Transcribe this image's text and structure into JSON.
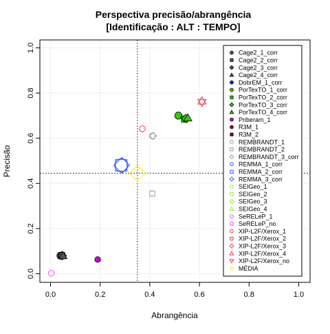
{
  "chart_data": {
    "type": "scatter",
    "title": [
      "Perspectiva precisão/abrangência",
      "[Identificação : ALT : TEMPO]"
    ],
    "xlabel": "Abrangência",
    "ylabel": "Precisão",
    "xlim": [
      0,
      1
    ],
    "ylim": [
      0,
      1
    ],
    "xticks": [
      "0.0",
      "0.2",
      "0.4",
      "0.6",
      "0.8",
      "1.0"
    ],
    "yticks": [
      "0.0",
      "0.2",
      "0.4",
      "0.6",
      "0.8",
      "1.0"
    ],
    "grid": true,
    "reference_lines": {
      "x": 0.35,
      "y": 0.445
    },
    "legend_position": "top-right",
    "series": [
      {
        "name": "Cage2_1_corr",
        "shape": "circle",
        "color": "#555555",
        "fill": true,
        "size": "large",
        "points": [
          {
            "x": 0.04,
            "y": 0.08
          }
        ]
      },
      {
        "name": "Cage2_2_corr",
        "shape": "square",
        "color": "#555555",
        "fill": true,
        "size": "large",
        "points": [
          {
            "x": 0.045,
            "y": 0.08
          }
        ]
      },
      {
        "name": "Cage2_3_corr",
        "shape": "diamond",
        "color": "#555555",
        "fill": true,
        "size": "large",
        "points": [
          {
            "x": 0.047,
            "y": 0.08
          }
        ]
      },
      {
        "name": "Cage2_4_corr",
        "shape": "triangle",
        "color": "#555555",
        "fill": true,
        "size": "large",
        "points": [
          {
            "x": 0.05,
            "y": 0.08
          }
        ]
      },
      {
        "name": "DobrEM_1_corr",
        "shape": "circle",
        "color": "#0000cc",
        "fill": true,
        "size": "normal",
        "points": []
      },
      {
        "name": "PorTexTO_1_corr",
        "shape": "circle",
        "color": "#33cc00",
        "fill": true,
        "size": "large",
        "points": [
          {
            "x": 0.515,
            "y": 0.7
          }
        ]
      },
      {
        "name": "PorTexTO_2_corr",
        "shape": "square",
        "color": "#33cc00",
        "fill": true,
        "size": "large",
        "points": [
          {
            "x": 0.54,
            "y": 0.685
          }
        ]
      },
      {
        "name": "PorTexTO_3_corr",
        "shape": "diamond",
        "color": "#33cc00",
        "fill": true,
        "size": "large",
        "points": [
          {
            "x": 0.545,
            "y": 0.687
          }
        ]
      },
      {
        "name": "PorTexTO_4_corr",
        "shape": "triangle",
        "color": "#33cc00",
        "fill": true,
        "size": "large",
        "points": [
          {
            "x": 0.553,
            "y": 0.69
          }
        ]
      },
      {
        "name": "Priberam_1",
        "shape": "circle",
        "color": "#cc00cc",
        "fill": true,
        "size": "normal",
        "points": [
          {
            "x": 0.19,
            "y": 0.063
          }
        ]
      },
      {
        "name": "R3M_1",
        "shape": "circle",
        "color": "#990033",
        "fill": true,
        "size": "normal",
        "points": []
      },
      {
        "name": "R3M_2",
        "shape": "square",
        "color": "#990033",
        "fill": true,
        "size": "normal",
        "points": []
      },
      {
        "name": "REMBRANDT_1",
        "shape": "circle",
        "color": "#999999",
        "fill": false,
        "size": "normal",
        "points": [
          {
            "x": 0.41,
            "y": 0.61
          }
        ]
      },
      {
        "name": "REMBRANDT_2",
        "shape": "square",
        "color": "#999999",
        "fill": false,
        "size": "normal",
        "points": [
          {
            "x": 0.41,
            "y": 0.355
          }
        ]
      },
      {
        "name": "REMBRANDT_3_corr",
        "shape": "diamond",
        "color": "#999999",
        "fill": false,
        "size": "normal",
        "points": [
          {
            "x": 0.413,
            "y": 0.61
          }
        ]
      },
      {
        "name": "REMMA_1_corr",
        "shape": "circle",
        "color": "#3355ff",
        "fill": false,
        "size": "xlarge",
        "points": [
          {
            "x": 0.285,
            "y": 0.48
          }
        ]
      },
      {
        "name": "REMMA_2_corr",
        "shape": "square",
        "color": "#3355ff",
        "fill": false,
        "size": "xlarge",
        "points": [
          {
            "x": 0.285,
            "y": 0.48
          }
        ]
      },
      {
        "name": "REMMA_3_corr",
        "shape": "diamond",
        "color": "#3355ff",
        "fill": false,
        "size": "xlarge",
        "points": [
          {
            "x": 0.287,
            "y": 0.48
          }
        ]
      },
      {
        "name": "SEIGeo_1",
        "shape": "circle",
        "color": "#99ee33",
        "fill": false,
        "size": "normal",
        "points": []
      },
      {
        "name": "SEIGeo_2",
        "shape": "square",
        "color": "#99ee33",
        "fill": false,
        "size": "normal",
        "points": []
      },
      {
        "name": "SEIGeo_3",
        "shape": "diamond",
        "color": "#99ee33",
        "fill": false,
        "size": "normal",
        "points": []
      },
      {
        "name": "SEIGeo_4",
        "shape": "triangle",
        "color": "#99ee33",
        "fill": false,
        "size": "normal",
        "points": []
      },
      {
        "name": "SeRELeP_1",
        "shape": "circle",
        "color": "#ff44ff",
        "fill": false,
        "size": "normal",
        "points": [
          {
            "x": 0.003,
            "y": 0.002
          }
        ]
      },
      {
        "name": "SeRELeP_no",
        "shape": "square",
        "color": "#ff44ff",
        "fill": false,
        "size": "normal",
        "points": []
      },
      {
        "name": "XIP-L2F/Xerox_1",
        "shape": "circle",
        "color": "#ee3344",
        "fill": false,
        "size": "normal",
        "points": [
          {
            "x": 0.37,
            "y": 0.642
          }
        ]
      },
      {
        "name": "XIP-L2F/Xerox_2",
        "shape": "square",
        "color": "#ee3344",
        "fill": false,
        "size": "normal",
        "points": []
      },
      {
        "name": "XIP-L2F/Xerox_3",
        "shape": "diamond",
        "color": "#ee3344",
        "fill": false,
        "size": "normal",
        "points": []
      },
      {
        "name": "XIP-L2F/Xerox_4",
        "shape": "triangle",
        "color": "#ee3344",
        "fill": false,
        "size": "large",
        "points": [
          {
            "x": 0.61,
            "y": 0.765
          }
        ]
      },
      {
        "name": "XIP-L2F/Xerox_no",
        "shape": "triangle-down",
        "color": "#ee3344",
        "fill": false,
        "size": "large",
        "points": [
          {
            "x": 0.61,
            "y": 0.758
          }
        ]
      },
      {
        "name": "MÉDIA",
        "shape": "diamond",
        "color": "#ffee00",
        "fill": false,
        "size": "xlarge",
        "points": [
          {
            "x": 0.35,
            "y": 0.445
          }
        ]
      }
    ]
  }
}
